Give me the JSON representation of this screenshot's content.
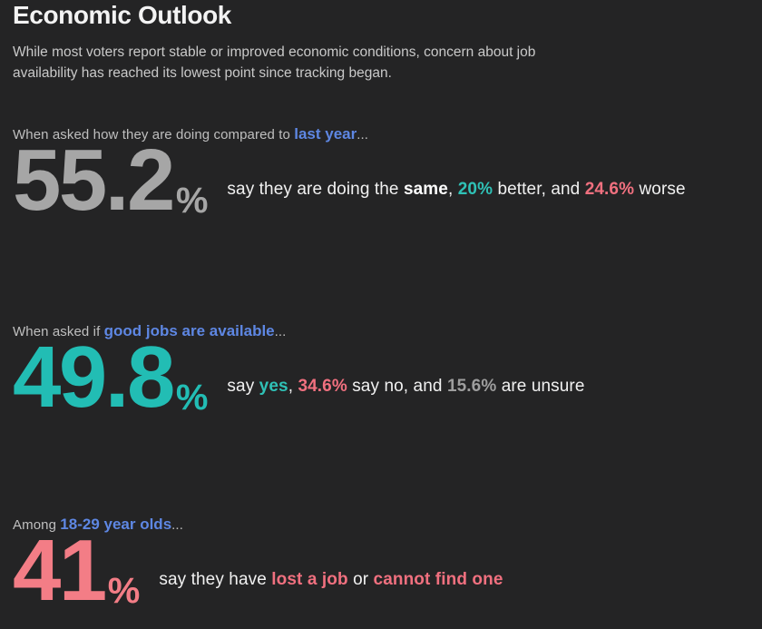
{
  "header": {
    "title": "Economic Outlook",
    "subtitle": "While most voters report stable or improved economic conditions, concern about job availability has reached its lowest point since tracking began."
  },
  "colors": {
    "background": "#242425",
    "highlight_blue": "#5e87e3",
    "teal": "#2fc1b6",
    "pink": "#f0707f",
    "stat_gray": "#a6a6a6",
    "stat_teal": "#22bdb4",
    "stat_pink": "#f37d86",
    "muted_gray": "#9e9e9e"
  },
  "sections": [
    {
      "question_prefix": "When asked how they are doing compared to ",
      "question_highlight": "last year",
      "question_suffix": "...",
      "stat_value": "55.2",
      "stat_unit": "%",
      "stat_color": "#a6a6a6",
      "description_segments": [
        {
          "text": "say they are doing the "
        },
        {
          "text": "same",
          "bold": true,
          "color": "#ffffff"
        },
        {
          "text": ", "
        },
        {
          "text": "20%",
          "bold": true,
          "color": "#2fc1b6"
        },
        {
          "text": " better, and "
        },
        {
          "text": "24.6%",
          "bold": true,
          "color": "#f0707f"
        },
        {
          "text": " worse"
        }
      ]
    },
    {
      "question_prefix": "When asked if ",
      "question_highlight": "good jobs are available",
      "question_suffix": "...",
      "stat_value": "49.8",
      "stat_unit": "%",
      "stat_color": "#22bdb4",
      "description_segments": [
        {
          "text": "say "
        },
        {
          "text": "yes",
          "bold": true,
          "color": "#2fc1b6"
        },
        {
          "text": ", "
        },
        {
          "text": "34.6%",
          "bold": true,
          "color": "#f0707f"
        },
        {
          "text": " say no, and "
        },
        {
          "text": "15.6%",
          "bold": true,
          "color": "#9e9e9e"
        },
        {
          "text": " are unsure"
        }
      ]
    },
    {
      "question_prefix": "Among ",
      "question_highlight": "18-29 year olds",
      "question_suffix": "...",
      "stat_value": "41",
      "stat_unit": "%",
      "stat_color": "#f37d86",
      "description_segments": [
        {
          "text": "say they have "
        },
        {
          "text": "lost a job",
          "bold": true,
          "color": "#f0707f"
        },
        {
          "text": " or "
        },
        {
          "text": "cannot find one",
          "bold": true,
          "color": "#f0707f"
        }
      ]
    }
  ],
  "chart_data": {
    "type": "table",
    "title": "Economic Outlook",
    "rows": [
      {
        "question": "How are they doing compared to last year",
        "same_pct": 55.2,
        "better_pct": 20,
        "worse_pct": 24.6
      },
      {
        "question": "Are good jobs available",
        "yes_pct": 49.8,
        "no_pct": 34.6,
        "unsure_pct": 15.6
      },
      {
        "question": "18-29 year olds who have lost a job or cannot find one",
        "pct": 41
      }
    ]
  }
}
